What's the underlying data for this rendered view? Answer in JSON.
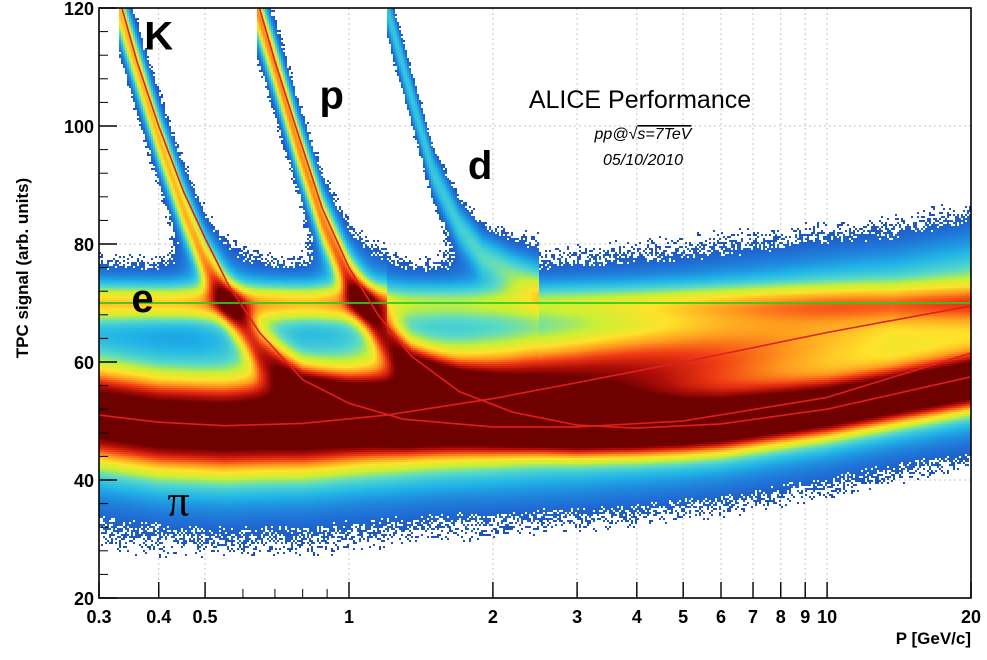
{
  "chart_data": {
    "type": "heatmap",
    "title": "ALICE Performance",
    "subtitle_prefix": "pp@",
    "subtitle_sqrt": "√",
    "subtitle_rest": "s=7TeV",
    "date": "05/10/2010",
    "xlabel": "P [GeV/c]",
    "ylabel": "TPC signal (arb. units)",
    "x_scale": "log",
    "xlim": [
      0.3,
      20
    ],
    "ylim": [
      20,
      120
    ],
    "x_ticks": [
      {
        "value": 0.3,
        "label": "0.3"
      },
      {
        "value": 0.4,
        "label": "0.4"
      },
      {
        "value": 0.5,
        "label": "0.5"
      },
      {
        "value": 1,
        "label": "1"
      },
      {
        "value": 2,
        "label": "2"
      },
      {
        "value": 3,
        "label": "3"
      },
      {
        "value": 4,
        "label": "4"
      },
      {
        "value": 5,
        "label": "5"
      },
      {
        "value": 6,
        "label": "6"
      },
      {
        "value": 7,
        "label": "7"
      },
      {
        "value": 8,
        "label": "8"
      },
      {
        "value": 9,
        "label": "9"
      },
      {
        "value": 10,
        "label": "10"
      },
      {
        "value": 20,
        "label": "20"
      }
    ],
    "y_ticks": [
      {
        "value": 20,
        "label": "20"
      },
      {
        "value": 40,
        "label": "40"
      },
      {
        "value": 60,
        "label": "60"
      },
      {
        "value": 80,
        "label": "80"
      },
      {
        "value": 100,
        "label": "100"
      },
      {
        "value": 120,
        "label": "120"
      }
    ],
    "grid": true,
    "reference_line": {
      "y": 70,
      "color": "#2ec820"
    },
    "curve_color": "#e0201c",
    "colormap": [
      "#1a2a9c",
      "#1f6fd6",
      "#20b4e8",
      "#56d9c8",
      "#c8f034",
      "#ffe22a",
      "#ff9a1e",
      "#f03a14",
      "#b00e08",
      "#6e0000"
    ],
    "particle_labels": [
      {
        "text": "K",
        "x": 0.4,
        "y": 113
      },
      {
        "text": "p",
        "x": 0.92,
        "y": 103
      },
      {
        "text": "d",
        "x": 1.88,
        "y": 91
      },
      {
        "text": "e",
        "x": 0.37,
        "y": 68.5
      },
      {
        "text": "π",
        "x": 0.44,
        "y": 34
      }
    ],
    "bands": [
      {
        "name": "pi",
        "points": [
          [
            0.3,
            51
          ],
          [
            0.4,
            49.5
          ],
          [
            0.55,
            49
          ],
          [
            0.8,
            49.5
          ],
          [
            1.2,
            51
          ],
          [
            2,
            53.5
          ],
          [
            3,
            56
          ],
          [
            5,
            59.5
          ],
          [
            10,
            64.5
          ],
          [
            20,
            69
          ]
        ],
        "width": 5.5,
        "amp": 1.0
      },
      {
        "name": "e",
        "points": [
          [
            0.3,
            70
          ],
          [
            1,
            70
          ],
          [
            20,
            70
          ]
        ],
        "width": 2.2,
        "amp": 0.42
      },
      {
        "name": "K",
        "points": [
          [
            0.33,
            120
          ],
          [
            0.36,
            110
          ],
          [
            0.4,
            98
          ],
          [
            0.45,
            86
          ],
          [
            0.5,
            77
          ],
          [
            0.56,
            70
          ],
          [
            0.65,
            62
          ],
          [
            0.8,
            55
          ],
          [
            1,
            52
          ],
          [
            1.3,
            50
          ],
          [
            2,
            49
          ],
          [
            3,
            49
          ],
          [
            5,
            49.5
          ],
          [
            10,
            52.5
          ],
          [
            20,
            57
          ]
        ],
        "width": 3.0,
        "amp": 0.5
      },
      {
        "name": "p",
        "points": [
          [
            0.64,
            120
          ],
          [
            0.7,
            110
          ],
          [
            0.78,
            97
          ],
          [
            0.88,
            84
          ],
          [
            1,
            74
          ],
          [
            1.15,
            66
          ],
          [
            1.35,
            59
          ],
          [
            1.7,
            54
          ],
          [
            2.2,
            51
          ],
          [
            3,
            49
          ],
          [
            4,
            48.5
          ],
          [
            6,
            48.8
          ],
          [
            10,
            51.5
          ],
          [
            20,
            56
          ]
        ],
        "width": 3.0,
        "amp": 0.55
      },
      {
        "name": "d",
        "points": [
          [
            1.2,
            120
          ],
          [
            1.35,
            105
          ],
          [
            1.5,
            92
          ],
          [
            1.7,
            83
          ],
          [
            1.9,
            78
          ],
          [
            2.2,
            75
          ],
          [
            2.5,
            73
          ]
        ],
        "width": 2.5,
        "amp": 0.22
      }
    ],
    "bethe_bloch_curves": [
      {
        "name": "pi",
        "points": [
          [
            0.3,
            51
          ],
          [
            0.4,
            49.8
          ],
          [
            0.55,
            49.2
          ],
          [
            0.8,
            49.6
          ],
          [
            1.2,
            51
          ],
          [
            2,
            53.8
          ],
          [
            3,
            56.5
          ],
          [
            5,
            60
          ],
          [
            10,
            65
          ],
          [
            20,
            69.5
          ]
        ]
      },
      {
        "name": "K",
        "points": [
          [
            0.335,
            120
          ],
          [
            0.36,
            111
          ],
          [
            0.4,
            100
          ],
          [
            0.45,
            89
          ],
          [
            0.5,
            81
          ],
          [
            0.56,
            73
          ],
          [
            0.65,
            65
          ],
          [
            0.8,
            57
          ],
          [
            1,
            53
          ],
          [
            1.3,
            50.3
          ],
          [
            2,
            49
          ],
          [
            3,
            49
          ],
          [
            5,
            50
          ],
          [
            10,
            54
          ],
          [
            20,
            61.5
          ]
        ]
      },
      {
        "name": "p",
        "points": [
          [
            0.65,
            120
          ],
          [
            0.7,
            111
          ],
          [
            0.78,
            99
          ],
          [
            0.88,
            86
          ],
          [
            1,
            76
          ],
          [
            1.15,
            68
          ],
          [
            1.35,
            61
          ],
          [
            1.7,
            55
          ],
          [
            2.2,
            51.5
          ],
          [
            3,
            49.3
          ],
          [
            4,
            48.8
          ],
          [
            6,
            49.5
          ],
          [
            10,
            52
          ],
          [
            20,
            57.5
          ]
        ]
      }
    ]
  }
}
